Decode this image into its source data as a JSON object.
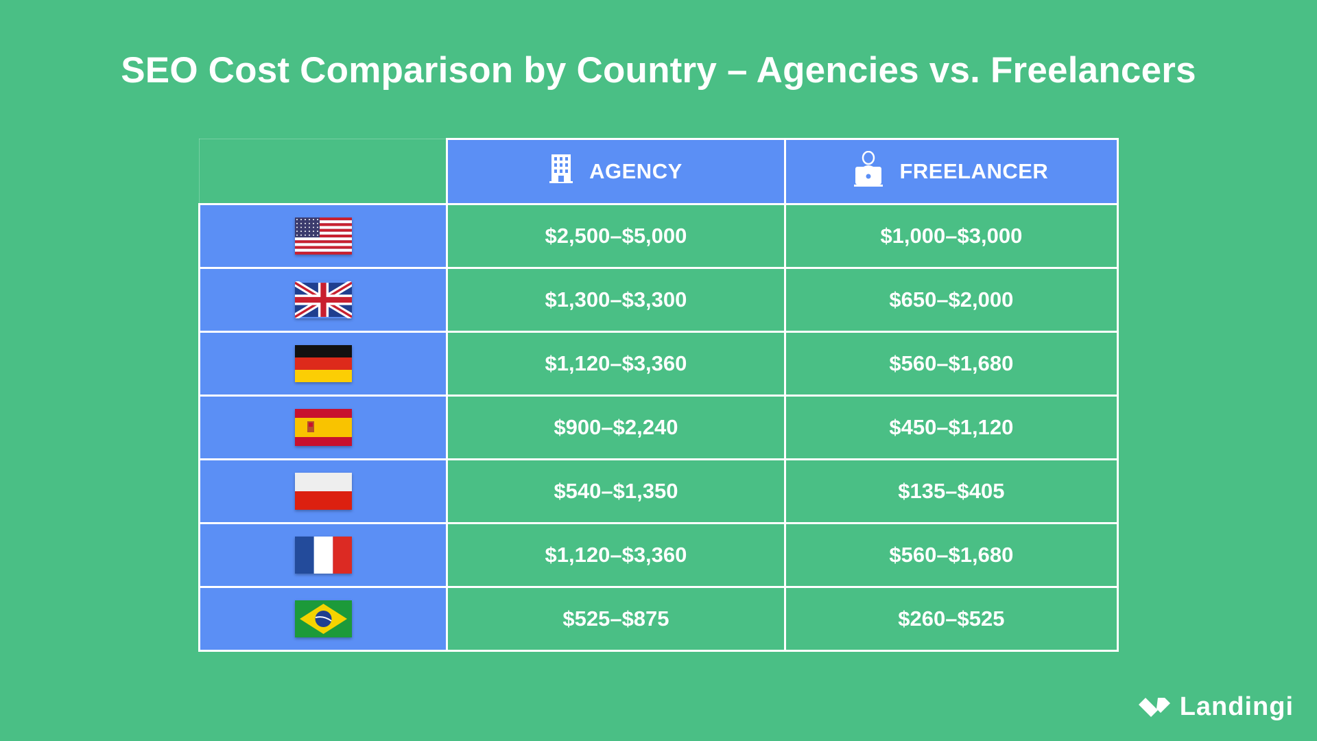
{
  "title": "SEO Cost Comparison by Country – Agencies vs. Freelancers",
  "headers": {
    "agency": "AGENCY",
    "freelancer": "FREELANCER",
    "agency_icon": "building-icon",
    "freelancer_icon": "person-laptop-icon"
  },
  "rows": [
    {
      "flag": "flag-usa",
      "agency": "$2,500–$5,000",
      "freelancer": "$1,000–$3,000"
    },
    {
      "flag": "flag-uk",
      "agency": "$1,300–$3,300",
      "freelancer": "$650–$2,000"
    },
    {
      "flag": "flag-germany",
      "agency": "$1,120–$3,360",
      "freelancer": "$560–$1,680"
    },
    {
      "flag": "flag-spain",
      "agency": "$900–$2,240",
      "freelancer": "$450–$1,120"
    },
    {
      "flag": "flag-poland",
      "agency": "$540–$1,350",
      "freelancer": "$135–$405"
    },
    {
      "flag": "flag-france",
      "agency": "$1,120–$3,360",
      "freelancer": "$560–$1,680"
    },
    {
      "flag": "flag-brazil",
      "agency": "$525–$875",
      "freelancer": "$260–$525"
    }
  ],
  "logo": "Landingi",
  "colors": {
    "background": "#4abf85",
    "header": "#5b8ff5"
  }
}
